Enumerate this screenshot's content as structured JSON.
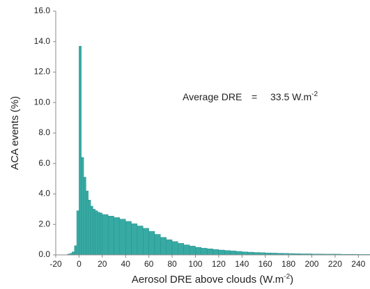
{
  "chart_data": {
    "type": "histogram",
    "y_label": "ACA events (%)",
    "x_label": {
      "text": "Aerosol DRE above clouds (W.m",
      "sup": "-2",
      "tail": ")"
    },
    "annotation": {
      "label": "Average DRE",
      "equals": "=",
      "value": "33.5 W.m",
      "sup": "-2"
    },
    "color": "#38aaa4",
    "edge_color": "#1f8a85",
    "bins": [
      -10,
      -8,
      -6,
      -4,
      -2,
      0,
      2,
      4,
      6,
      8,
      10,
      12,
      14,
      16,
      18,
      20,
      25,
      30,
      35,
      40,
      45,
      50,
      55,
      60,
      65,
      70,
      75,
      80,
      85,
      90,
      95,
      100,
      105,
      110,
      115,
      120,
      125,
      130,
      135,
      140,
      145,
      150,
      155,
      160,
      165,
      170,
      175,
      180,
      185,
      190,
      195,
      200,
      205,
      210,
      215,
      220,
      225,
      230,
      235,
      240,
      245,
      250
    ],
    "values": [
      0.05,
      0.1,
      0.2,
      0.6,
      2.9,
      13.7,
      6.4,
      5.1,
      4.2,
      3.6,
      3.2,
      3.0,
      2.9,
      2.8,
      2.75,
      2.65,
      2.55,
      2.45,
      2.35,
      2.2,
      2.05,
      1.9,
      1.75,
      1.55,
      1.35,
      1.15,
      1.0,
      0.88,
      0.76,
      0.66,
      0.58,
      0.5,
      0.44,
      0.4,
      0.36,
      0.32,
      0.29,
      0.26,
      0.23,
      0.2,
      0.18,
      0.16,
      0.15,
      0.13,
      0.12,
      0.11,
      0.1,
      0.09,
      0.08,
      0.07,
      0.07,
      0.06,
      0.06,
      0.05,
      0.05,
      0.05,
      0.04,
      0.04,
      0.04,
      0.03,
      0.03
    ],
    "xlim": [
      -20,
      250
    ],
    "xticks": [
      -20,
      0,
      20,
      40,
      60,
      80,
      100,
      120,
      140,
      160,
      180,
      200,
      220,
      240
    ],
    "ylim": [
      0,
      16
    ],
    "yticks": [
      {
        "value": 0,
        "label": "0.0"
      },
      {
        "value": 2,
        "label": "2.0"
      },
      {
        "value": 4,
        "label": "4.0"
      },
      {
        "value": 6,
        "label": "6.0"
      },
      {
        "value": 8,
        "label": "8.0"
      },
      {
        "value": 10,
        "label": "10.0"
      },
      {
        "value": 12,
        "label": "12.0"
      },
      {
        "value": 14,
        "label": "14.0"
      },
      {
        "value": 16,
        "label": "16.0"
      }
    ]
  }
}
